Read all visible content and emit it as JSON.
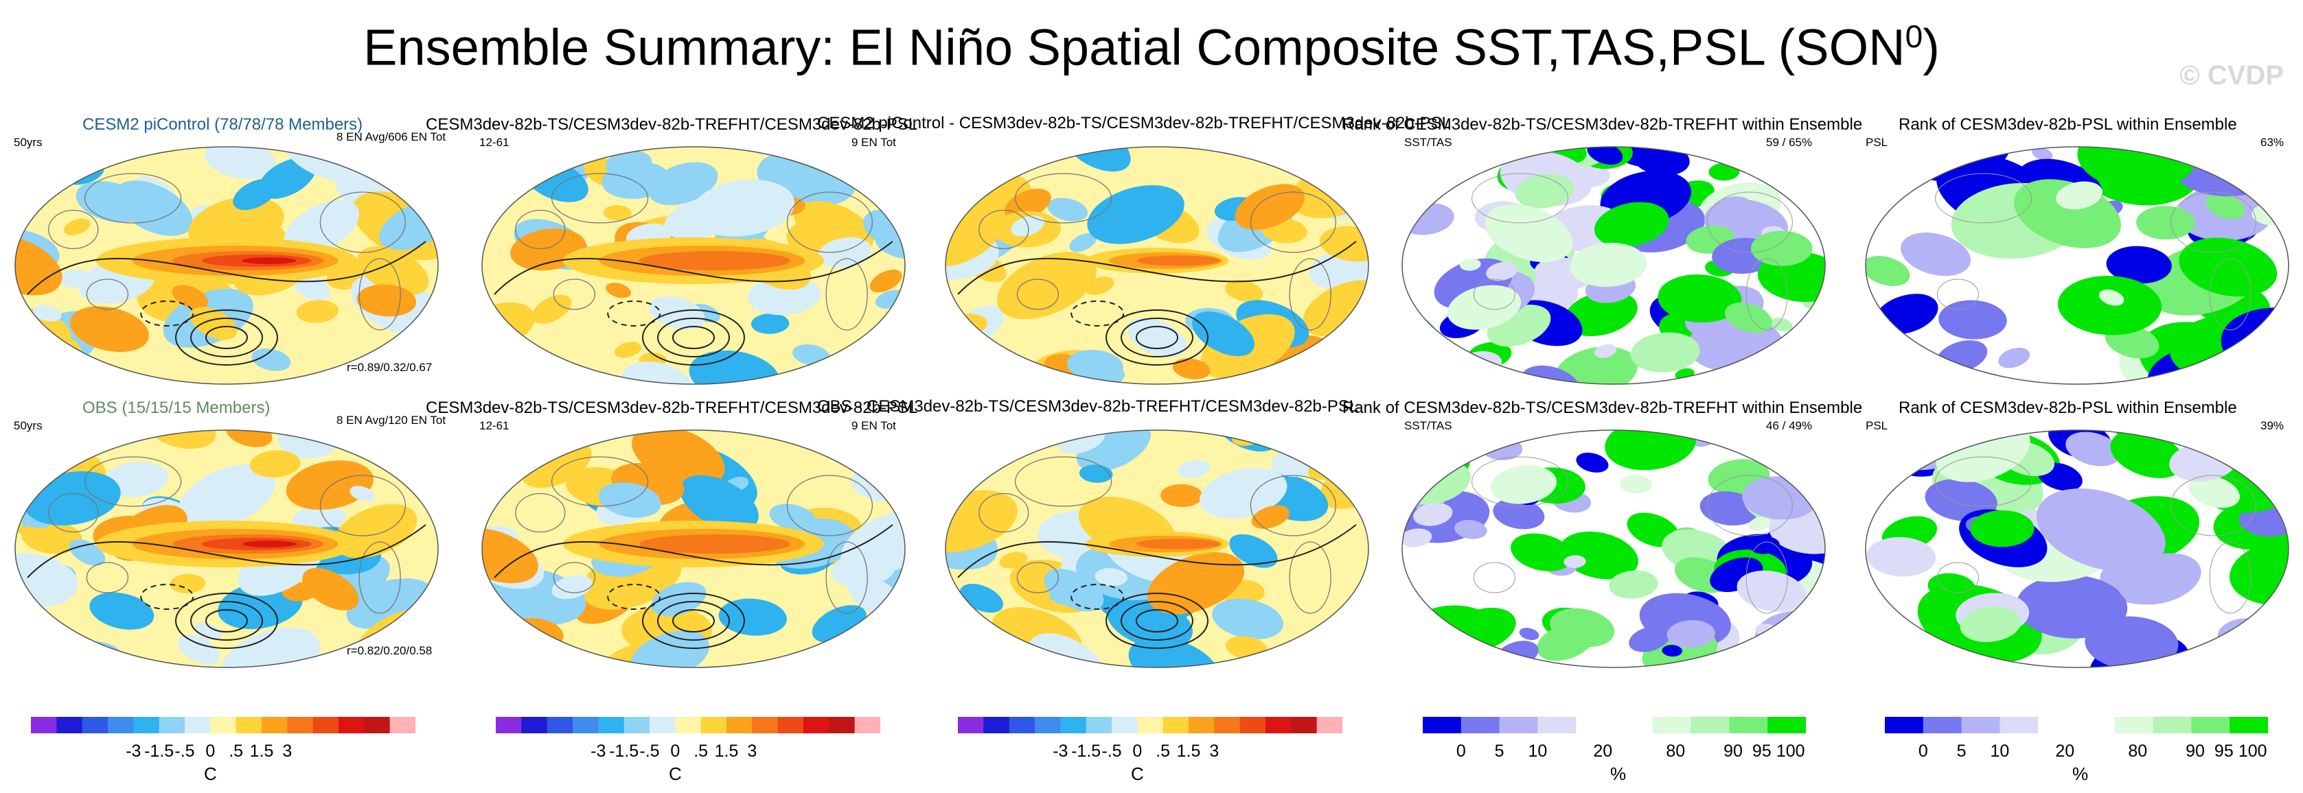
{
  "title": "Ensemble Summary: El Niño Spatial Composite SST,TAS,PSL (SON",
  "title_sup": "0",
  "title_close": ")",
  "watermark": "© CVDP",
  "colors": {
    "anomaly": [
      "#8a2be2",
      "#1c1cd6",
      "#2f57e8",
      "#3f8bef",
      "#2fb2ee",
      "#8fd3f5",
      "#d7eef8",
      "#fff5a6",
      "#ffd33a",
      "#fca21c",
      "#f6781a",
      "#ee4a15",
      "#dc1512",
      "#c01616",
      "#ffb1b6"
    ],
    "rank": [
      "#0000e6",
      "#7777f0",
      "#b3b3f5",
      "#dcdcf8",
      "#ffffff",
      "#ffffff",
      "#dcfadc",
      "#b3f5b3",
      "#77ee77",
      "#00e600"
    ]
  },
  "rows": [
    {
      "col1_title": "CESM2 piControl (78/78/78 Members)",
      "col1_color": "blue",
      "col1_left": "50yrs",
      "col1_right": "8 EN Avg/606 EN Tot",
      "col1_corr": "r=0.89/0.32/0.67",
      "col2_title": "CESM3dev-82b-TS/CESM3dev-82b-TREFHT/CESM3dev-82b-PSL",
      "col2_left": "12-61",
      "col2_right": "9 EN Tot",
      "col3_title": "CESM2 piControl - CESM3dev-82b-TS/CESM3dev-82b-TREFHT/CESM3dev-82b-PSL",
      "col4_title": "Rank of CESM3dev-82b-TS/CESM3dev-82b-TREFHT within Ensemble",
      "col4_left": "SST/TAS",
      "col4_right": "59 /  65%",
      "col5_title": "Rank of CESM3dev-82b-PSL within Ensemble",
      "col5_left": "PSL",
      "col5_right": "63%"
    },
    {
      "col1_title": "OBS (15/15/15 Members)",
      "col1_color": "green",
      "col1_left": "50yrs",
      "col1_right": "8 EN Avg/120 EN Tot",
      "col1_corr": "r=0.82/0.20/0.58",
      "col2_title": "CESM3dev-82b-TS/CESM3dev-82b-TREFHT/CESM3dev-82b-PSL",
      "col2_left": "12-61",
      "col2_right": "9 EN Tot",
      "col3_title": "OBS - CESM3dev-82b-TS/CESM3dev-82b-TREFHT/CESM3dev-82b-PSL",
      "col4_title": "Rank of CESM3dev-82b-TS/CESM3dev-82b-TREFHT within Ensemble",
      "col4_left": "SST/TAS",
      "col4_right": "46 /  49%",
      "col5_title": "Rank of CESM3dev-82b-PSL within Ensemble",
      "col5_left": "PSL",
      "col5_right": "39%"
    }
  ],
  "colorbars": {
    "anomaly_ticks": [
      "-3",
      "-1.5",
      "-.5",
      "0",
      ".5",
      "1.5",
      "3"
    ],
    "anomaly_unit": "C",
    "rank_ticks": [
      "0",
      "5",
      "10",
      "20",
      "80",
      "90",
      "95",
      "100"
    ],
    "rank_unit": "%"
  }
}
